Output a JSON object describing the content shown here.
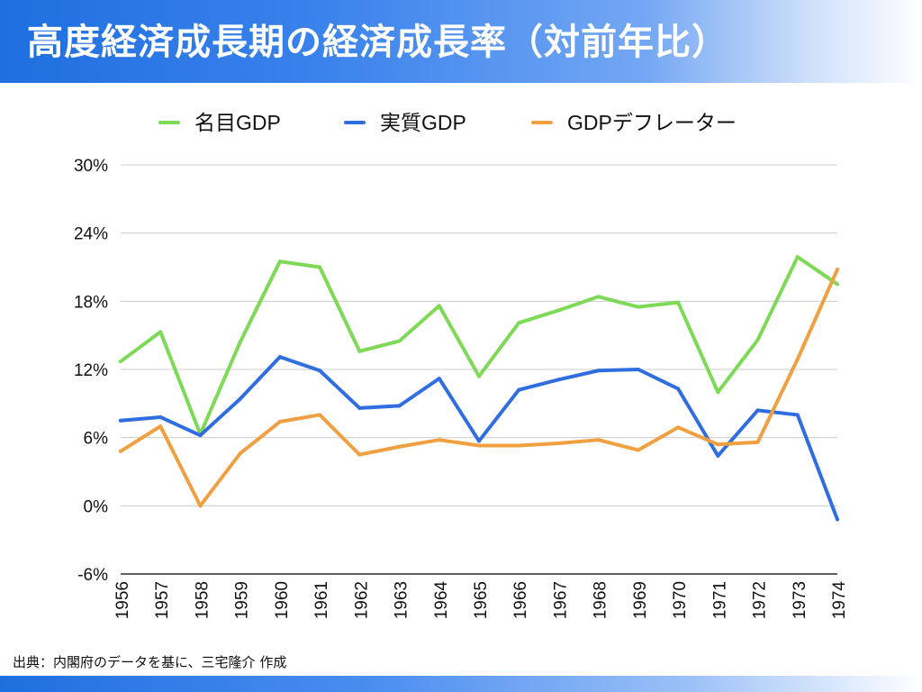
{
  "header": {
    "title": "高度経済成長期の経済成長率（対前年比）"
  },
  "footer": {
    "source": "出典：内閣府のデータを基に、三宅隆介 作成"
  },
  "chart_data": {
    "type": "line",
    "x": [
      "1956",
      "1957",
      "1958",
      "1959",
      "1960",
      "1961",
      "1962",
      "1963",
      "1964",
      "1965",
      "1966",
      "1967",
      "1968",
      "1969",
      "1970",
      "1971",
      "1972",
      "1973",
      "1974"
    ],
    "yticks": [
      "30%",
      "24%",
      "18%",
      "12%",
      "6%",
      "0%",
      "-6%"
    ],
    "ylim": [
      -6,
      30
    ],
    "grid": true,
    "legend_position": "top",
    "series": [
      {
        "name": "名目GDP",
        "color": "#7ed957",
        "values": [
          12.7,
          15.3,
          6.3,
          14.4,
          21.5,
          21.0,
          13.6,
          14.5,
          17.6,
          11.4,
          16.1,
          17.2,
          18.4,
          17.5,
          17.9,
          10.0,
          14.6,
          21.9,
          19.5
        ]
      },
      {
        "name": "実質GDP",
        "color": "#2f6de0",
        "values": [
          7.5,
          7.8,
          6.2,
          9.4,
          13.1,
          11.9,
          8.6,
          8.8,
          11.2,
          5.7,
          10.2,
          11.1,
          11.9,
          12.0,
          10.3,
          4.4,
          8.4,
          8.0,
          -1.2
        ]
      },
      {
        "name": "GDPデフレーター",
        "color": "#f0a040",
        "values": [
          4.8,
          7.0,
          0.0,
          4.6,
          7.4,
          8.0,
          4.5,
          5.2,
          5.8,
          5.3,
          5.3,
          5.5,
          5.8,
          4.9,
          6.9,
          5.4,
          5.6,
          12.9,
          20.8
        ]
      }
    ]
  }
}
